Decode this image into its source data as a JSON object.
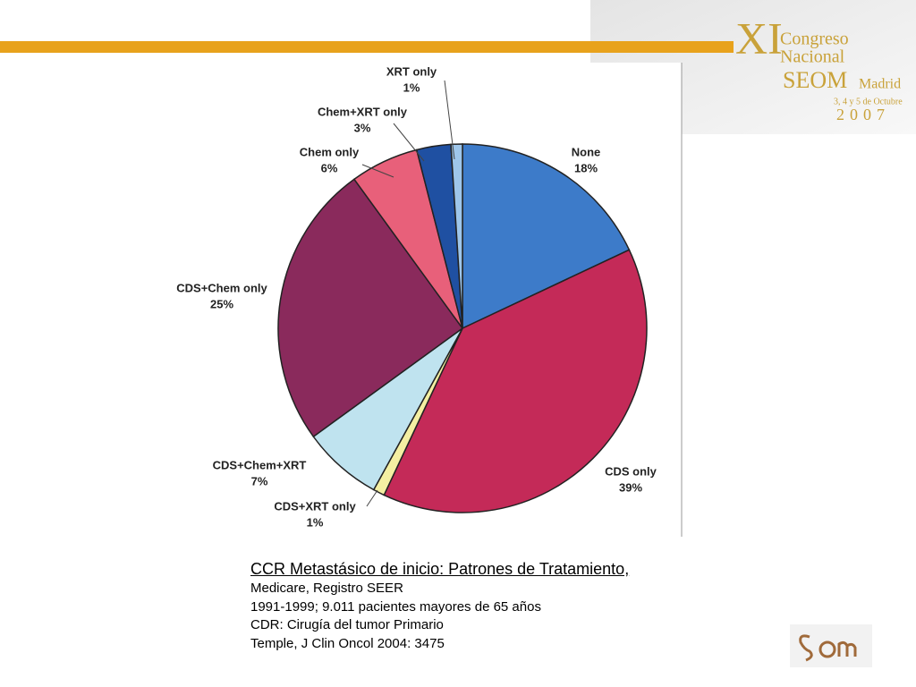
{
  "header": {
    "roman": "XI",
    "line1": "Congreso",
    "line2": "Nacional",
    "brand": "SEOM",
    "city": "Madrid",
    "dates": "3, 4 y 5 de Octubre",
    "year": "2007"
  },
  "chart_data": {
    "type": "pie",
    "categories": [
      "None",
      "CDS only",
      "CDS+XRT only",
      "CDS+Chem+XRT",
      "CDS+Chem only",
      "Chem only",
      "Chem+XRT only",
      "XRT only"
    ],
    "values": [
      18,
      39,
      1,
      7,
      25,
      6,
      3,
      1
    ],
    "value_labels": [
      "18%",
      "39%",
      "1%",
      "7%",
      "25%",
      "6%",
      "3%",
      "1%"
    ],
    "colors": [
      "#3d7bc9",
      "#c42a58",
      "#f4efa2",
      "#bfe3ef",
      "#8a2a5c",
      "#e8607a",
      "#1f50a2",
      "#9ec6ea"
    ]
  },
  "caption": {
    "title": "CCR Metastásico de inicio: Patrones de Tratamiento,",
    "lines": [
      "Medicare, Registro SEER",
      "1991-1999; 9.011 pacientes mayores de 65 años",
      "CDR: Cirugía del tumor Primario",
      "Temple, J Clin Oncol 2004: 3475"
    ]
  }
}
